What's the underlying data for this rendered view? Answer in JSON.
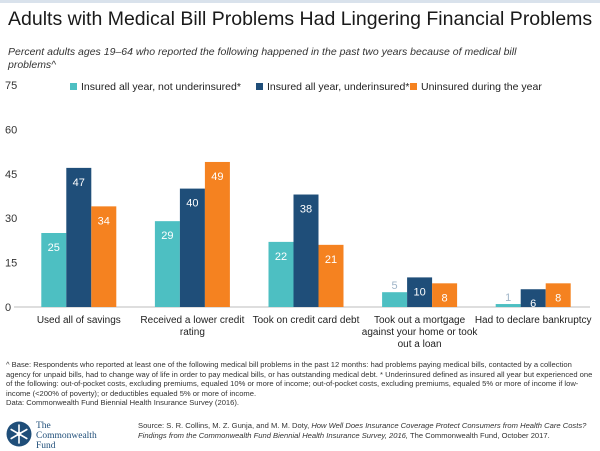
{
  "title": "Adults with Medical Bill Problems Had Lingering Financial Problems",
  "subtitle": "Percent adults ages 19–64 who reported the following happened in the past two years because of medical bill problems^",
  "chart_data": {
    "type": "bar",
    "ylim": [
      0,
      75
    ],
    "yticks": [
      0,
      15,
      30,
      45,
      60,
      75
    ],
    "grid": false,
    "legend_position": "top",
    "categories": [
      [
        "Used all of savings"
      ],
      [
        "Received a lower credit",
        "rating"
      ],
      [
        "Took on credit card debt"
      ],
      [
        "Took out a mortgage",
        "against your home or took",
        "out a loan"
      ],
      [
        "Had to declare bankruptcy"
      ]
    ],
    "series": [
      {
        "name": "Insured all year, not underinsured*",
        "color": "#4dbfc2",
        "values": [
          25,
          29,
          22,
          5,
          1
        ]
      },
      {
        "name": "Insured all year, underinsured*",
        "color": "#1f4e79",
        "values": [
          47,
          40,
          38,
          10,
          6
        ]
      },
      {
        "name": "Uninsured during the year",
        "color": "#f58220",
        "values": [
          34,
          49,
          21,
          8,
          8
        ]
      }
    ]
  },
  "footnote": {
    "base": "^ Base: Respondents who reported at least one of the following medical bill problems in the past 12 months: had problems paying medical bills, contacted by a collection agency for unpaid bills, had to change way of life in order to pay medical bills, or has outstanding medical debt. * Underinsured defined as insured all year but experienced one of the following: out-of-pocket costs, excluding premiums, equaled 10% or more of income; out-of-pocket costs, excluding premiums, equaled 5% or more of income if low-income (<200% of poverty); or deductibles equaled 5% or more of income.",
    "data_source": "Data: Commonwealth Fund Biennial Health Insurance Survey (2016)."
  },
  "logo": {
    "line1": "The",
    "line2": "Commonwealth",
    "line3": "Fund"
  },
  "source": {
    "prefix": "Source: S. R. Collins, M. Z. Gunja, and M. M. Doty, ",
    "italic": "How Well Does Insurance Coverage Protect Consumers from Health Care Costs? Findings from the Commonwealth Fund Biennial Health Insurance Survey, 2016,",
    "suffix": " The Commonwealth Fund, October 2017."
  }
}
